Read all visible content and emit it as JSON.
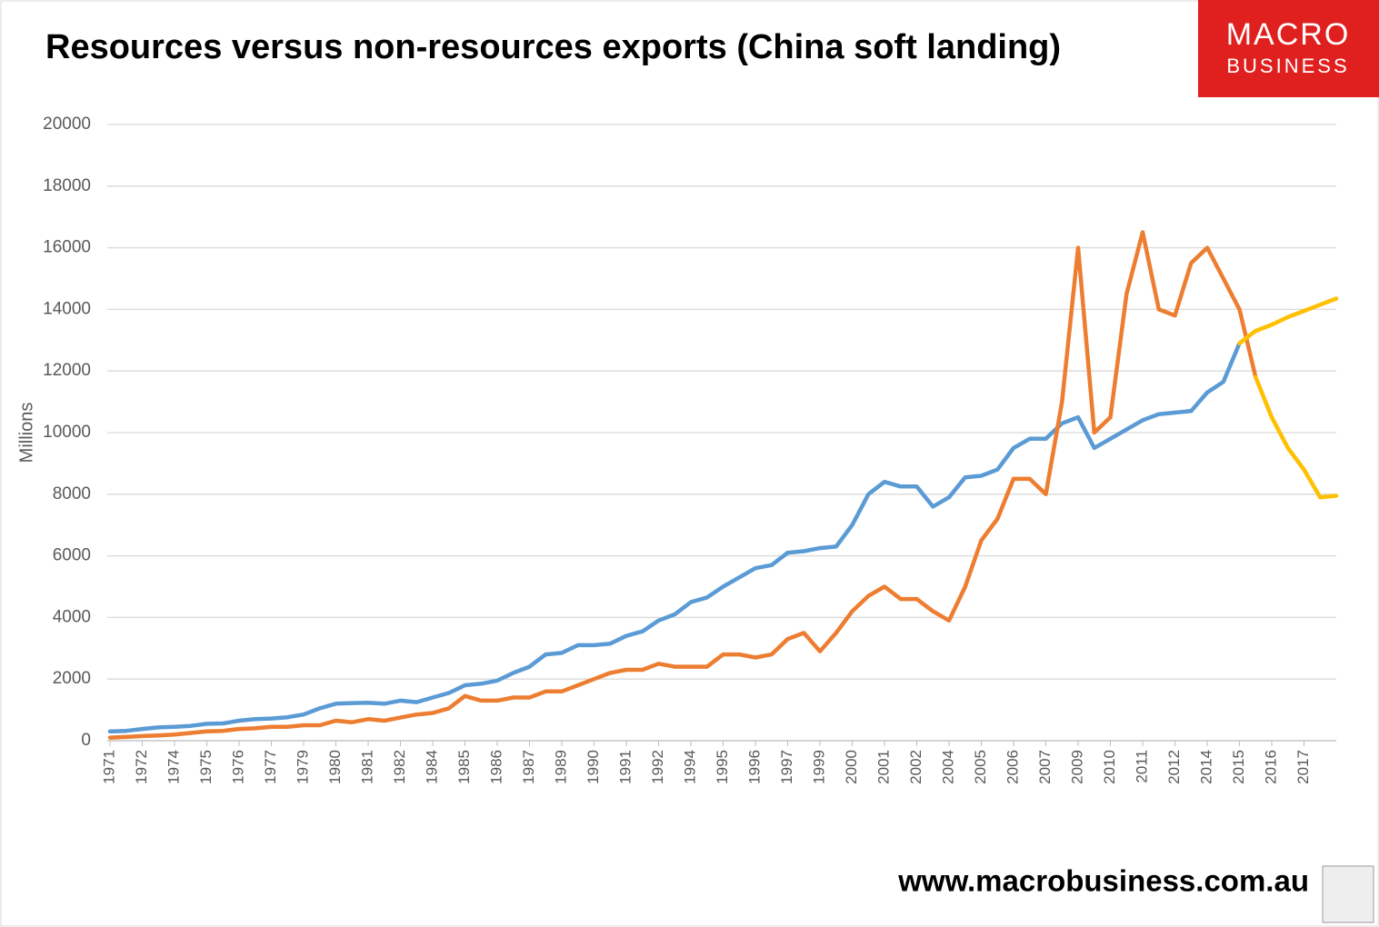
{
  "header": {
    "logo": [
      "MACRO",
      "BUSINESS"
    ],
    "footer": "www.macrobusiness.com.au"
  },
  "chart_data": {
    "type": "line",
    "title": "Resources versus non-resources exports (China soft landing)",
    "y_label": "Millions",
    "categories": [
      "1971",
      null,
      "1972",
      null,
      "1974",
      null,
      "1975",
      null,
      "1976",
      null,
      "1977",
      null,
      "1979",
      null,
      "1980",
      null,
      "1981",
      null,
      "1982",
      null,
      "1984",
      null,
      "1985",
      null,
      "1986",
      null,
      "1987",
      null,
      "1989",
      null,
      "1990",
      null,
      "1991",
      null,
      "1992",
      null,
      "1994",
      null,
      "1995",
      null,
      "1996",
      null,
      "1997",
      null,
      "1999",
      null,
      "2000",
      null,
      "2001",
      null,
      "2002",
      null,
      "2004",
      null,
      "2005",
      null,
      "2006",
      null,
      "2007",
      null,
      "2009",
      null,
      "2010",
      null,
      "2011",
      null,
      "2012",
      null,
      "2014",
      null,
      "2015",
      null,
      "2016",
      null,
      "2017",
      null,
      null
    ],
    "series": [
      {
        "color": "#5b9bd5",
        "values": [
          300,
          320,
          380,
          430,
          450,
          480,
          550,
          560,
          650,
          700,
          720,
          760,
          850,
          1050,
          1200,
          1220,
          1230,
          1200,
          1300,
          1250,
          1400,
          1550,
          1800,
          1850,
          1950,
          2200,
          2400,
          2800,
          2850,
          3100,
          3100,
          3150,
          3400,
          3550,
          3900,
          4100,
          4500,
          4650,
          5000,
          5300,
          5600,
          5700,
          6100,
          6150,
          6250,
          6300,
          7000,
          8000,
          8400,
          8250,
          8250,
          7600,
          7900,
          8550,
          8600,
          8800,
          9500,
          9800,
          9800,
          10300,
          10500,
          9500,
          9800,
          10100,
          10400,
          10600,
          10650,
          10700,
          11300,
          11650,
          12900,
          null,
          null,
          null,
          null,
          null,
          null
        ]
      },
      {
        "color": "#ed7d31",
        "values": [
          100,
          120,
          150,
          170,
          200,
          250,
          300,
          320,
          380,
          400,
          450,
          450,
          500,
          500,
          650,
          600,
          700,
          650,
          750,
          850,
          900,
          1050,
          1450,
          1300,
          1300,
          1400,
          1400,
          1600,
          1600,
          1800,
          2000,
          2200,
          2300,
          2300,
          2500,
          2400,
          2400,
          2400,
          2800,
          2800,
          2700,
          2800,
          3300,
          3500,
          2900,
          3500,
          4200,
          4700,
          5000,
          4600,
          4600,
          4200,
          3900,
          5000,
          6500,
          7200,
          8500,
          8500,
          8000,
          11000,
          16000,
          10000,
          10500,
          14500,
          16500,
          14000,
          13800,
          15500,
          16000,
          15000,
          14000,
          11800,
          null,
          null,
          null,
          null,
          null
        ]
      },
      {
        "color": "#ffc000",
        "values": [
          null,
          null,
          null,
          null,
          null,
          null,
          null,
          null,
          null,
          null,
          null,
          null,
          null,
          null,
          null,
          null,
          null,
          null,
          null,
          null,
          null,
          null,
          null,
          null,
          null,
          null,
          null,
          null,
          null,
          null,
          null,
          null,
          null,
          null,
          null,
          null,
          null,
          null,
          null,
          null,
          null,
          null,
          null,
          null,
          null,
          null,
          null,
          null,
          null,
          null,
          null,
          null,
          null,
          null,
          null,
          null,
          null,
          null,
          null,
          null,
          null,
          null,
          null,
          null,
          null,
          null,
          null,
          null,
          null,
          null,
          12900,
          13300,
          13500,
          13750,
          13950,
          14150,
          14350
        ]
      },
      {
        "color": "#ffc000",
        "values": [
          null,
          null,
          null,
          null,
          null,
          null,
          null,
          null,
          null,
          null,
          null,
          null,
          null,
          null,
          null,
          null,
          null,
          null,
          null,
          null,
          null,
          null,
          null,
          null,
          null,
          null,
          null,
          null,
          null,
          null,
          null,
          null,
          null,
          null,
          null,
          null,
          null,
          null,
          null,
          null,
          null,
          null,
          null,
          null,
          null,
          null,
          null,
          null,
          null,
          null,
          null,
          null,
          null,
          null,
          null,
          null,
          null,
          null,
          null,
          null,
          null,
          null,
          null,
          null,
          null,
          null,
          null,
          null,
          null,
          null,
          null,
          11800,
          10500,
          9500,
          8800,
          7900,
          7950
        ]
      }
    ],
    "ylim": [
      0,
      20000
    ],
    "yticks": [
      0,
      2000,
      4000,
      6000,
      8000,
      10000,
      12000,
      14000,
      16000,
      18000,
      20000
    ],
    "grid": true
  }
}
